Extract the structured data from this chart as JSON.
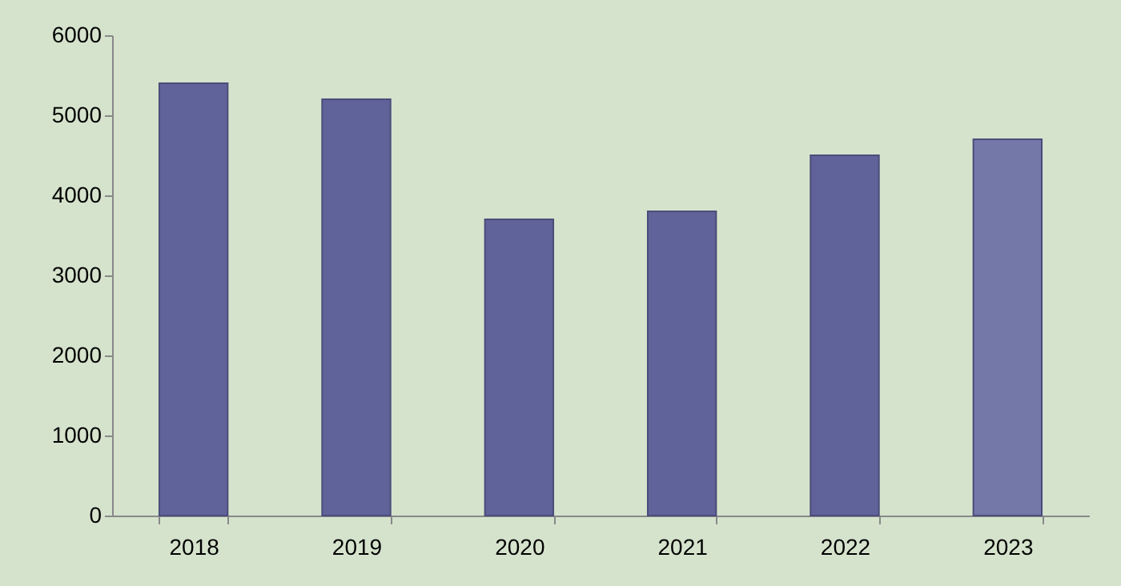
{
  "chart_data": {
    "type": "bar",
    "categories": [
      "2018",
      "2019",
      "2020",
      "2021",
      "2022",
      "2023"
    ],
    "values": [
      5400,
      5200,
      3700,
      3800,
      4500,
      4700
    ],
    "colors": [
      "#5f6399",
      "#5f6399",
      "#5f6399",
      "#5f6399",
      "#5f6399",
      "#7478a8"
    ],
    "ylim": [
      0,
      6000
    ],
    "yticks": [
      0,
      1000,
      2000,
      3000,
      4000,
      5000,
      6000
    ],
    "grid": false
  }
}
